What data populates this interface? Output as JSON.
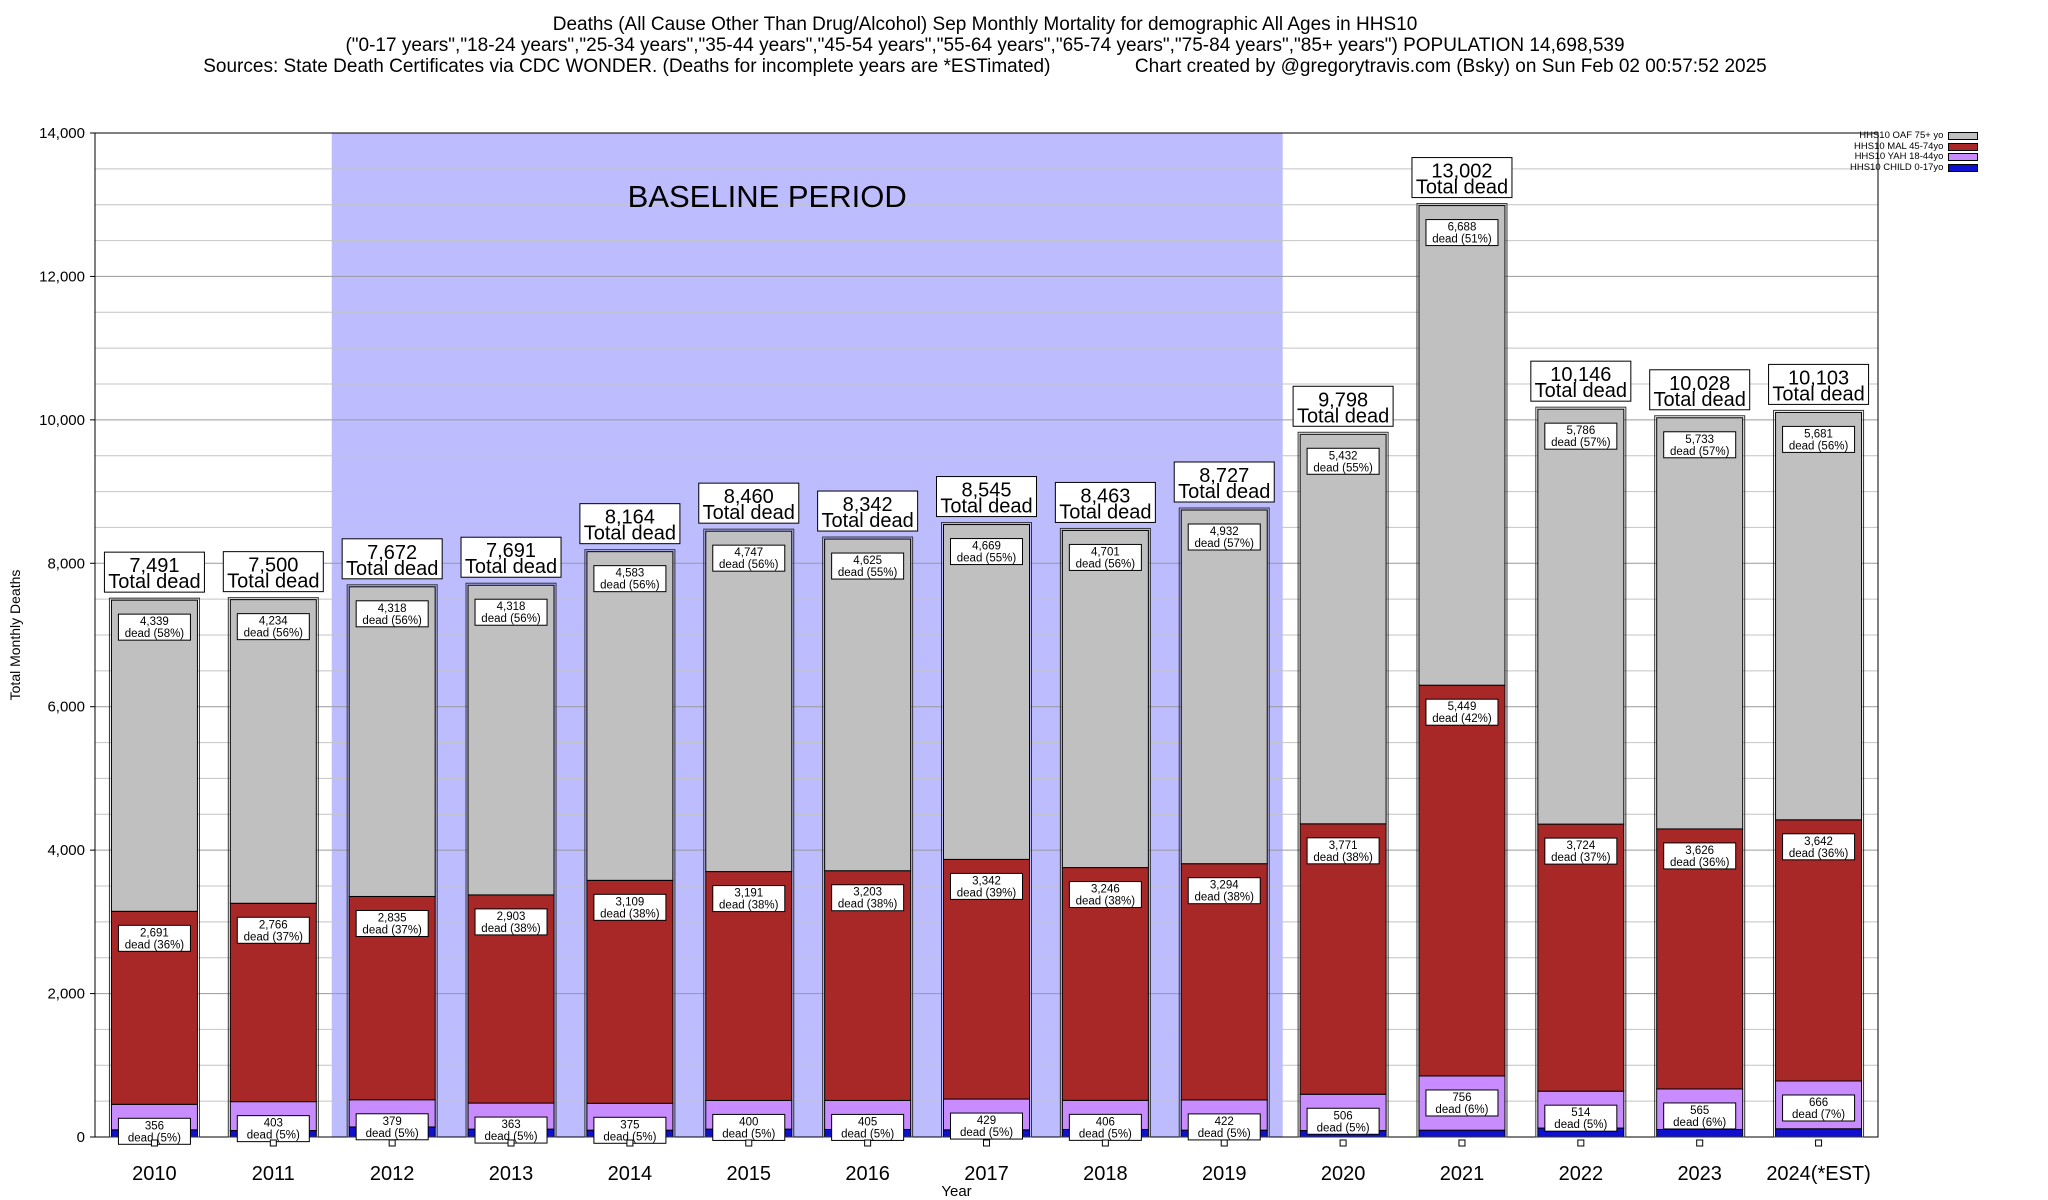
{
  "title": {
    "line1": "Deaths (All Cause Other Than Drug/Alcohol) Sep Monthly Mortality for demographic All Ages in HHS10",
    "line2": "(\"0-17 years\",\"18-24 years\",\"25-34 years\",\"35-44 years\",\"45-54 years\",\"55-64 years\",\"65-74 years\",\"75-84 years\",\"85+ years\") POPULATION 14,698,539",
    "line3": "Sources: State Death Certificates via CDC WONDER. (Deaths for incomplete years are *ESTimated)                Chart created by @gregorytravis.com (Bsky) on Sun Feb 02 00:57:52 2025"
  },
  "chart_data": {
    "type": "bar",
    "stacked": true,
    "xlabel": "Year",
    "ylabel": "Total Monthly Deaths",
    "ylim": [
      0,
      14000
    ],
    "yticks": [
      "0",
      "2,000",
      "4,000",
      "6,000",
      "8,000",
      "10,000",
      "12,000",
      "14,000"
    ],
    "grid": true,
    "legend_position": "top-right",
    "categories": [
      "2010",
      "2011",
      "2012",
      "2013",
      "2014",
      "2015",
      "2016",
      "2017",
      "2018",
      "2019",
      "2020",
      "2021",
      "2022",
      "2023",
      "2024(*EST)"
    ],
    "series": [
      {
        "name": "HHS10 CHILD 0-17yo",
        "color": "#1010d0",
        "values": [
          100,
          90,
          140,
          110,
          95,
          110,
          105,
          100,
          105,
          95,
          90,
          95,
          125,
          105,
          115
        ]
      },
      {
        "name": "HHS10 YAH 18-44yo",
        "color": "#c88cff",
        "values": [
          356,
          403,
          379,
          363,
          375,
          400,
          405,
          429,
          406,
          422,
          506,
          756,
          514,
          565,
          666
        ]
      },
      {
        "name": "HHS10 MAL 45-74yo",
        "color": "#a82828",
        "values": [
          2691,
          2766,
          2835,
          2903,
          3109,
          3191,
          3203,
          3342,
          3246,
          3294,
          3771,
          5449,
          3724,
          3626,
          3642
        ]
      },
      {
        "name": "HHS10 OAF 75+ yo",
        "color": "#c0c0c0",
        "values": [
          4339,
          4234,
          4318,
          4318,
          4583,
          4747,
          4625,
          4669,
          4701,
          4932,
          5432,
          6688,
          5786,
          5733,
          5681
        ]
      }
    ],
    "segment_labels": {
      "yah": {
        "values": [
          "356",
          "403",
          "379",
          "363",
          "375",
          "400",
          "405",
          "429",
          "406",
          "422",
          "506",
          "756",
          "514",
          "565",
          "666"
        ],
        "pct": [
          "dead (5%)",
          "dead (5%)",
          "dead (5%)",
          "dead (5%)",
          "dead (5%)",
          "dead (5%)",
          "dead (5%)",
          "dead (5%)",
          "dead (5%)",
          "dead (5%)",
          "dead (5%)",
          "dead (6%)",
          "dead (5%)",
          "dead (6%)",
          "dead (7%)"
        ]
      },
      "mal": {
        "values": [
          "2,691",
          "2,766",
          "2,835",
          "2,903",
          "3,109",
          "3,191",
          "3,203",
          "3,342",
          "3,246",
          "3,294",
          "3,771",
          "5,449",
          "3,724",
          "3,626",
          "3,642"
        ],
        "pct": [
          "dead (36%)",
          "dead (37%)",
          "dead (37%)",
          "dead (38%)",
          "dead (38%)",
          "dead (38%)",
          "dead (38%)",
          "dead (39%)",
          "dead (38%)",
          "dead (38%)",
          "dead (38%)",
          "dead (42%)",
          "dead (37%)",
          "dead (36%)",
          "dead (36%)"
        ]
      },
      "oaf": {
        "values": [
          "4,339",
          "4,234",
          "4,318",
          "4,318",
          "4,583",
          "4,747",
          "4,625",
          "4,669",
          "4,701",
          "4,932",
          "5,432",
          "6,688",
          "5,786",
          "5,733",
          "5,681"
        ],
        "pct": [
          "dead (58%)",
          "dead (56%)",
          "dead (56%)",
          "dead (56%)",
          "dead (56%)",
          "dead (56%)",
          "dead (55%)",
          "dead (55%)",
          "dead (56%)",
          "dead (57%)",
          "dead (55%)",
          "dead (51%)",
          "dead (57%)",
          "dead (57%)",
          "dead (56%)"
        ]
      }
    },
    "totals": [
      7491,
      7500,
      7672,
      7691,
      8164,
      8460,
      8342,
      8545,
      8463,
      8727,
      9798,
      13002,
      10146,
      10028,
      10103
    ],
    "total_labels": [
      "7,491",
      "7,500",
      "7,672",
      "7,691",
      "8,164",
      "8,460",
      "8,342",
      "8,545",
      "8,463",
      "8,727",
      "9,798",
      "13,002",
      "10,146",
      "10,028",
      "10,103"
    ],
    "total_suffix": "Total dead",
    "annotation": {
      "text": "BASELINE PERIOD",
      "range": [
        "2012",
        "2019"
      ],
      "color": "#bcbcff"
    }
  }
}
